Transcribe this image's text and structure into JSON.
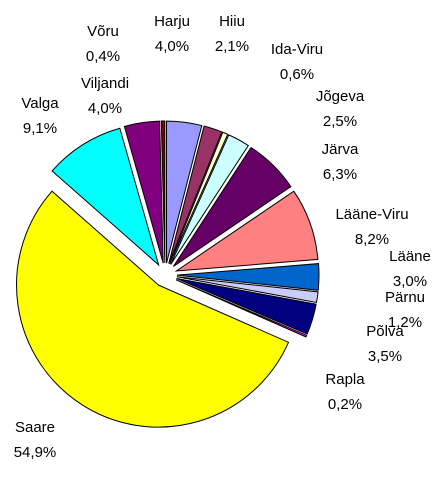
{
  "chart_data": {
    "type": "pie",
    "categories": [
      "Harju",
      "Hiiu",
      "Ida-Viru",
      "Jõgeva",
      "Järva",
      "Lääne-Viru",
      "Lääne",
      "Pärnu",
      "Põlva",
      "Rapla",
      "Saare",
      "Valga",
      "Viljandi",
      "Võru"
    ],
    "values": [
      4.0,
      2.1,
      0.6,
      2.5,
      6.3,
      8.2,
      3.0,
      1.2,
      3.5,
      0.2,
      54.9,
      9.1,
      4.0,
      0.4
    ],
    "value_labels": [
      "4,0%",
      "2,1%",
      "0,6%",
      "2,5%",
      "6,3%",
      "8,2%",
      "3,0%",
      "1,2%",
      "3,5%",
      "0,2%",
      "54,9%",
      "9,1%",
      "4,0%",
      "0,4%"
    ],
    "colors": [
      "#9999ff",
      "#993366",
      "#ffffcc",
      "#ccffff",
      "#660066",
      "#ff8080",
      "#0066cc",
      "#ccccff",
      "#000080",
      "#ff00ff",
      "#ffff00",
      "#00ffff",
      "#800080",
      "#800000"
    ]
  }
}
